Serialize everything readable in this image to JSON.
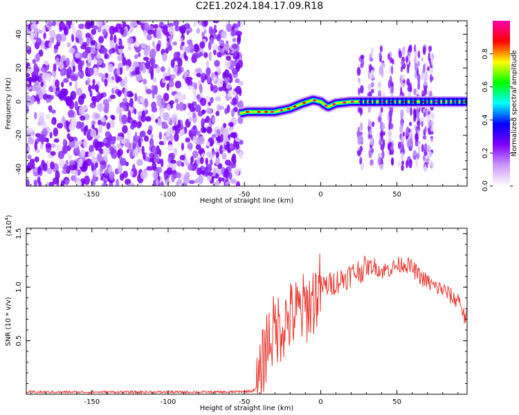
{
  "title": "C2E1.2024.184.17.09.R18",
  "chart_data": [
    {
      "type": "heatmap",
      "title": "C2E1.2024.184.17.09.R18",
      "xlabel": "Height of straight line (km)",
      "ylabel": "Frequency (Hz)",
      "xlim": [
        -193,
        96
      ],
      "ylim": [
        -50,
        48
      ],
      "x_ticks": [
        -150,
        -100,
        -50,
        0,
        50
      ],
      "y_ticks": [
        -40,
        -20,
        0,
        20,
        40
      ],
      "colorbar": {
        "label": "Normalized spectral amplitude",
        "range": [
          0,
          1
        ],
        "ticks": [
          "0.0",
          "0.2",
          "0.4",
          "0.6",
          "0.8"
        ],
        "tick_values": [
          0,
          0.2,
          0.4,
          0.6,
          0.8
        ],
        "colors": [
          "#ffffff",
          "#cc99ff",
          "#7f00ff",
          "#0000ff",
          "#00ffff",
          "#00ff00",
          "#ffff00",
          "#ff0000",
          "#ff00aa"
        ]
      },
      "noise_region": {
        "x_range": [
          -193,
          -52
        ],
        "y_range": [
          -50,
          48
        ],
        "color": "#7f00ff"
      },
      "ridge": {
        "x": [
          -53,
          -48,
          -40,
          -30,
          -20,
          -12,
          -5,
          0,
          3,
          5,
          10,
          20,
          30,
          50,
          70,
          96
        ],
        "y": [
          -7,
          -6,
          -6,
          -6,
          -4,
          -1,
          1,
          0,
          -2,
          -3,
          -1,
          0,
          0,
          0,
          0,
          0
        ]
      },
      "burst_columns_x": [
        26,
        33,
        40,
        46,
        53,
        58,
        63,
        68,
        72
      ]
    },
    {
      "type": "line",
      "xlabel": "Height of straight line (km)",
      "ylabel": "SNR (10 * v/v)",
      "scale_label": "(x10",
      "scale_exponent": "4",
      "scale_suffix": ")",
      "xlim": [
        -193,
        96
      ],
      "ylim": [
        0,
        1.55
      ],
      "x_ticks": [
        -150,
        -100,
        -50,
        0,
        50
      ],
      "y_ticks": [
        0.5,
        1.0,
        1.5
      ],
      "y_tick_labels": [
        "0.5",
        "1.0",
        "1.5"
      ],
      "color": "#e8372f",
      "series": [
        {
          "x": [
            -193,
            -150,
            -100,
            -60,
            -45,
            -42,
            -40,
            -38,
            -35,
            -30,
            -25,
            -20,
            -15,
            -10,
            -5,
            0,
            5,
            10,
            15,
            20,
            25,
            30,
            35,
            40,
            45,
            50,
            55,
            60,
            65,
            70,
            75,
            80,
            85,
            88,
            90,
            92,
            94,
            96
          ],
          "y": [
            0.02,
            0.02,
            0.02,
            0.02,
            0.03,
            0.06,
            0.1,
            0.3,
            0.5,
            0.6,
            0.65,
            0.72,
            0.76,
            0.8,
            0.88,
            1.0,
            1.02,
            1.05,
            1.08,
            1.12,
            1.15,
            1.18,
            1.2,
            1.15,
            1.17,
            1.2,
            1.22,
            1.18,
            1.1,
            1.05,
            1.0,
            0.98,
            0.92,
            0.88,
            0.9,
            0.85,
            0.72,
            0.72
          ]
        }
      ]
    }
  ]
}
